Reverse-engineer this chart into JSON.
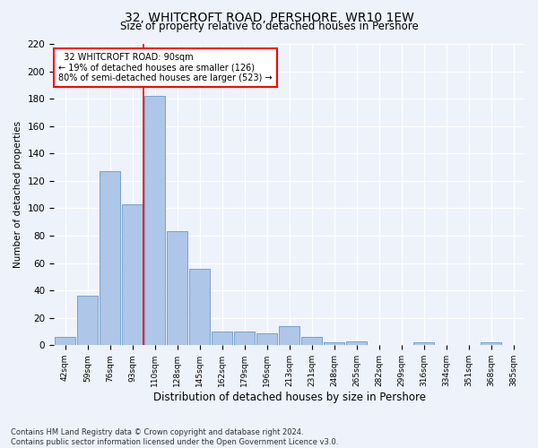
{
  "title1": "32, WHITCROFT ROAD, PERSHORE, WR10 1EW",
  "title2": "Size of property relative to detached houses in Pershore",
  "xlabel": "Distribution of detached houses by size in Pershore",
  "ylabel": "Number of detached properties",
  "bin_labels": [
    "42sqm",
    "59sqm",
    "76sqm",
    "93sqm",
    "110sqm",
    "128sqm",
    "145sqm",
    "162sqm",
    "179sqm",
    "196sqm",
    "213sqm",
    "231sqm",
    "248sqm",
    "265sqm",
    "282sqm",
    "299sqm",
    "316sqm",
    "334sqm",
    "351sqm",
    "368sqm",
    "385sqm"
  ],
  "bar_values": [
    6,
    36,
    127,
    103,
    182,
    83,
    56,
    10,
    10,
    9,
    14,
    6,
    2,
    3,
    0,
    0,
    2,
    0,
    0,
    2,
    0
  ],
  "bar_color": "#aec6e8",
  "bar_edge_color": "#6899c8",
  "red_line_x": 3.5,
  "annotation_line1": "  32 WHITCROFT ROAD: 90sqm",
  "annotation_line2": "← 19% of detached houses are smaller (126)",
  "annotation_line3": "80% of semi-detached houses are larger (523) →",
  "footer1": "Contains HM Land Registry data © Crown copyright and database right 2024.",
  "footer2": "Contains public sector information licensed under the Open Government Licence v3.0.",
  "ylim": [
    0,
    220
  ],
  "yticks": [
    0,
    20,
    40,
    60,
    80,
    100,
    120,
    140,
    160,
    180,
    200,
    220
  ],
  "background_color": "#eef2fb",
  "title1_fontsize": 10,
  "title2_fontsize": 9
}
